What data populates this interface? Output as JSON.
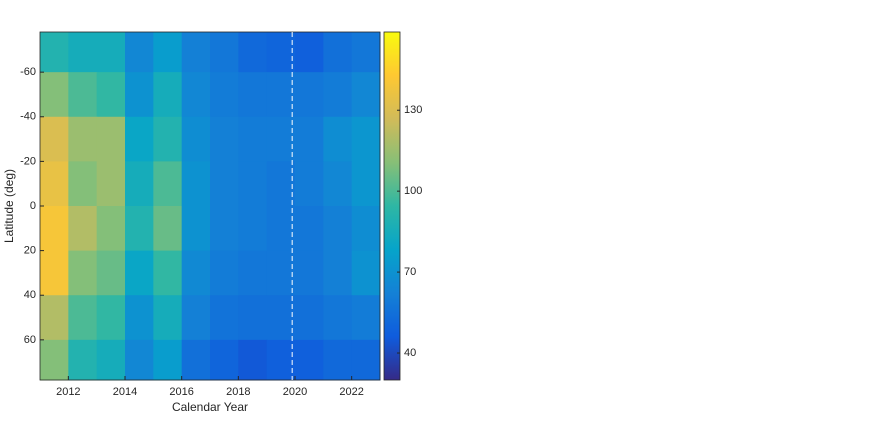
{
  "chart_data": {
    "type": "heatmap",
    "xlabel": "Calendar Year",
    "ylabel": "Latitude (deg)",
    "x_bins": [
      2011,
      2012,
      2013,
      2014,
      2015,
      2016,
      2017,
      2018,
      2019,
      2020,
      2021,
      2022,
      2023
    ],
    "y_bins": [
      -78,
      -60,
      -40,
      -20,
      0,
      20,
      40,
      60,
      78
    ],
    "values": [
      [
        90,
        85,
        85,
        65,
        75,
        62,
        58,
        52,
        50,
        48,
        55,
        58
      ],
      [
        110,
        100,
        95,
        70,
        85,
        65,
        60,
        58,
        58,
        58,
        60,
        65
      ],
      [
        130,
        115,
        115,
        80,
        90,
        68,
        62,
        60,
        60,
        60,
        68,
        72
      ],
      [
        135,
        110,
        115,
        85,
        100,
        70,
        62,
        60,
        58,
        60,
        65,
        72
      ],
      [
        140,
        120,
        110,
        90,
        105,
        70,
        62,
        60,
        58,
        58,
        62,
        68
      ],
      [
        140,
        110,
        105,
        80,
        95,
        66,
        60,
        58,
        58,
        58,
        62,
        70
      ],
      [
        120,
        100,
        95,
        70,
        85,
        62,
        56,
        55,
        55,
        55,
        58,
        60
      ],
      [
        110,
        90,
        85,
        65,
        75,
        55,
        50,
        45,
        48,
        48,
        52,
        52
      ]
    ],
    "xlim": [
      2011,
      2023
    ],
    "ylim": [
      -78,
      78
    ],
    "y_direction": "reverse",
    "xticks": [
      2012,
      2014,
      2016,
      2018,
      2020,
      2022
    ],
    "yticks": [
      -60,
      -40,
      -20,
      0,
      20,
      40,
      60
    ],
    "clim": [
      30,
      159
    ],
    "cticks": [
      40,
      70,
      100,
      130
    ],
    "colormap": [
      "#352a87",
      "#0f5cdd",
      "#1481d6",
      "#06a4ca",
      "#2eb7a4",
      "#87bf77",
      "#d1bb59",
      "#fec832",
      "#f9fb0e"
    ],
    "vline": 2019.9
  }
}
